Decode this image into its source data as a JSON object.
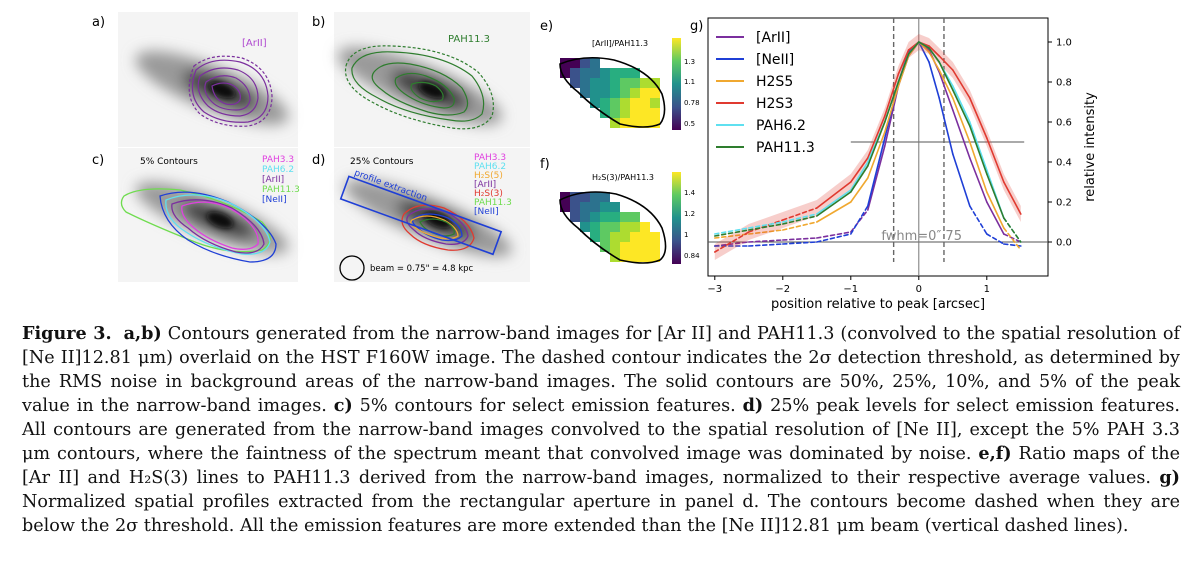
{
  "panels": {
    "a": {
      "label": "a)",
      "tag": "[ArII]"
    },
    "b": {
      "label": "b)",
      "tag": "PAH11.3"
    },
    "c": {
      "label": "c)",
      "title": "5% Contours",
      "legend": [
        "PAH3.3",
        "PAH6.2",
        "[ArII]",
        "PAH11.3",
        "[NeII]"
      ]
    },
    "d": {
      "label": "d)",
      "title": "25% Contours",
      "legend": [
        "PAH3.3",
        "PAH6.2",
        "H₂S(5)",
        "[ArII]",
        "H₂S(3)",
        "PAH11.3",
        "[NeII]"
      ],
      "slit_label": "profile extraction",
      "beam_label": "beam =  0.75\" = 4.8 kpc"
    },
    "e": {
      "label": "e)",
      "title": "[ArII]/PAH11.3",
      "cbar_ticks": [
        "1.3",
        "1.1",
        "0.78",
        "0.5"
      ]
    },
    "f": {
      "label": "f)",
      "title": "H₂S(3)/PAH11.3",
      "cbar_ticks": [
        "1.4",
        "1.2",
        "1",
        "0.84"
      ]
    },
    "g": {
      "label": "g)"
    }
  },
  "colors": {
    "ArII": "#7b2f9e",
    "NeII": "#1f3fd6",
    "H2S5": "#f0a830",
    "H2S3": "#e03a30",
    "PAH6.2": "#5fe0f0",
    "PAH11.3": "#2e7d2e",
    "PAH3.3": "#e040e0",
    "PAH11.3_c": "#6fdc4f"
  },
  "chart_data": {
    "type": "line",
    "xlabel": "position relative to peak [arcsec]",
    "ylabel": "relative intensity",
    "xlim": [
      -3.1,
      1.9
    ],
    "ylim": [
      -0.17,
      1.12
    ],
    "xticks": [
      "−3",
      "−2",
      "−1",
      "0",
      "1"
    ],
    "yticks": [
      "0.0",
      "0.2",
      "0.4",
      "0.6",
      "0.8",
      "1.0"
    ],
    "legend_position": "top-left",
    "fwhm_label": "fwhm=0″ 75",
    "beam_lines_x": [
      -0.37,
      0.37
    ],
    "hline_y": 0.5,
    "zero_y": 0.0,
    "x": [
      -3.0,
      -2.5,
      -2.0,
      -1.5,
      -1.0,
      -0.75,
      -0.5,
      -0.3,
      -0.15,
      0.0,
      0.15,
      0.3,
      0.5,
      0.75,
      1.0,
      1.25,
      1.5
    ],
    "series": [
      {
        "name": "[ArII]",
        "key": "ArII",
        "values": [
          -0.02,
          0.0,
          0.01,
          0.02,
          0.05,
          0.16,
          0.48,
          0.78,
          0.93,
          1.0,
          0.96,
          0.85,
          0.66,
          0.42,
          0.2,
          0.04,
          0.0
        ]
      },
      {
        "name": "[NeII]",
        "key": "NeII",
        "values": [
          -0.02,
          -0.02,
          -0.01,
          0.0,
          0.04,
          0.18,
          0.52,
          0.8,
          0.95,
          1.0,
          0.9,
          0.72,
          0.44,
          0.18,
          0.04,
          -0.01,
          -0.02
        ]
      },
      {
        "name": "H2S5",
        "key": "H2S5",
        "values": [
          0.02,
          0.04,
          0.06,
          0.1,
          0.2,
          0.32,
          0.55,
          0.78,
          0.93,
          1.0,
          0.95,
          0.86,
          0.72,
          0.5,
          0.25,
          0.07,
          -0.04
        ]
      },
      {
        "name": "H2S3",
        "key": "H2S3",
        "values": [
          -0.05,
          0.05,
          0.11,
          0.17,
          0.3,
          0.42,
          0.63,
          0.84,
          0.96,
          1.0,
          0.98,
          0.93,
          0.86,
          0.72,
          0.52,
          0.3,
          0.14
        ]
      },
      {
        "name": "PAH6.2",
        "key": "PAH6.2",
        "values": [
          0.04,
          0.07,
          0.1,
          0.14,
          0.26,
          0.4,
          0.6,
          0.8,
          0.94,
          1.0,
          0.97,
          0.9,
          0.78,
          0.6,
          0.36,
          0.12,
          0.0
        ]
      },
      {
        "name": "PAH11.3",
        "key": "PAH11.3",
        "values": [
          0.03,
          0.06,
          0.09,
          0.13,
          0.25,
          0.38,
          0.6,
          0.8,
          0.94,
          1.0,
          0.97,
          0.9,
          0.76,
          0.58,
          0.34,
          0.12,
          0.0
        ]
      }
    ],
    "dashed_below": 0.2
  },
  "caption": {
    "fig": "Figure 3.",
    "seg1b": "a,b)",
    "seg1": " Contours generated from the narrow-band images for [Ar II] and PAH11.3 (convolved to the spatial resolution of [Ne II]12.81 μm) overlaid on the HST F160W image. The dashed contour indicates the 2σ detection threshold, as determined by the RMS noise in background areas of the narrow-band images. The solid contours are 50%, 25%, 10%, and 5% of the peak value in the narrow-band images. ",
    "seg2b": "c)",
    "seg2": " 5% contours for select emission features. ",
    "seg3b": "d)",
    "seg3": " 25% peak levels for select emission features. All contours are generated from the narrow-band images convolved to the spatial resolution of [Ne II], except the 5% PAH 3.3 μm contours, where the faintness of the spectrum meant that convolved image was dominated by noise. ",
    "seg4b": "e,f)",
    "seg4": " Ratio maps of the [Ar II] and H₂S(3) lines to PAH11.3 derived from the narrow-band images, normalized to their respective average values. ",
    "seg5b": "g)",
    "seg5": " Normalized spatial profiles extracted from the rectangular aperture in panel d. The contours become dashed when they are below the 2σ threshold. All the emission features are more extended than the [Ne II]12.81 μm beam (vertical dashed lines)."
  }
}
